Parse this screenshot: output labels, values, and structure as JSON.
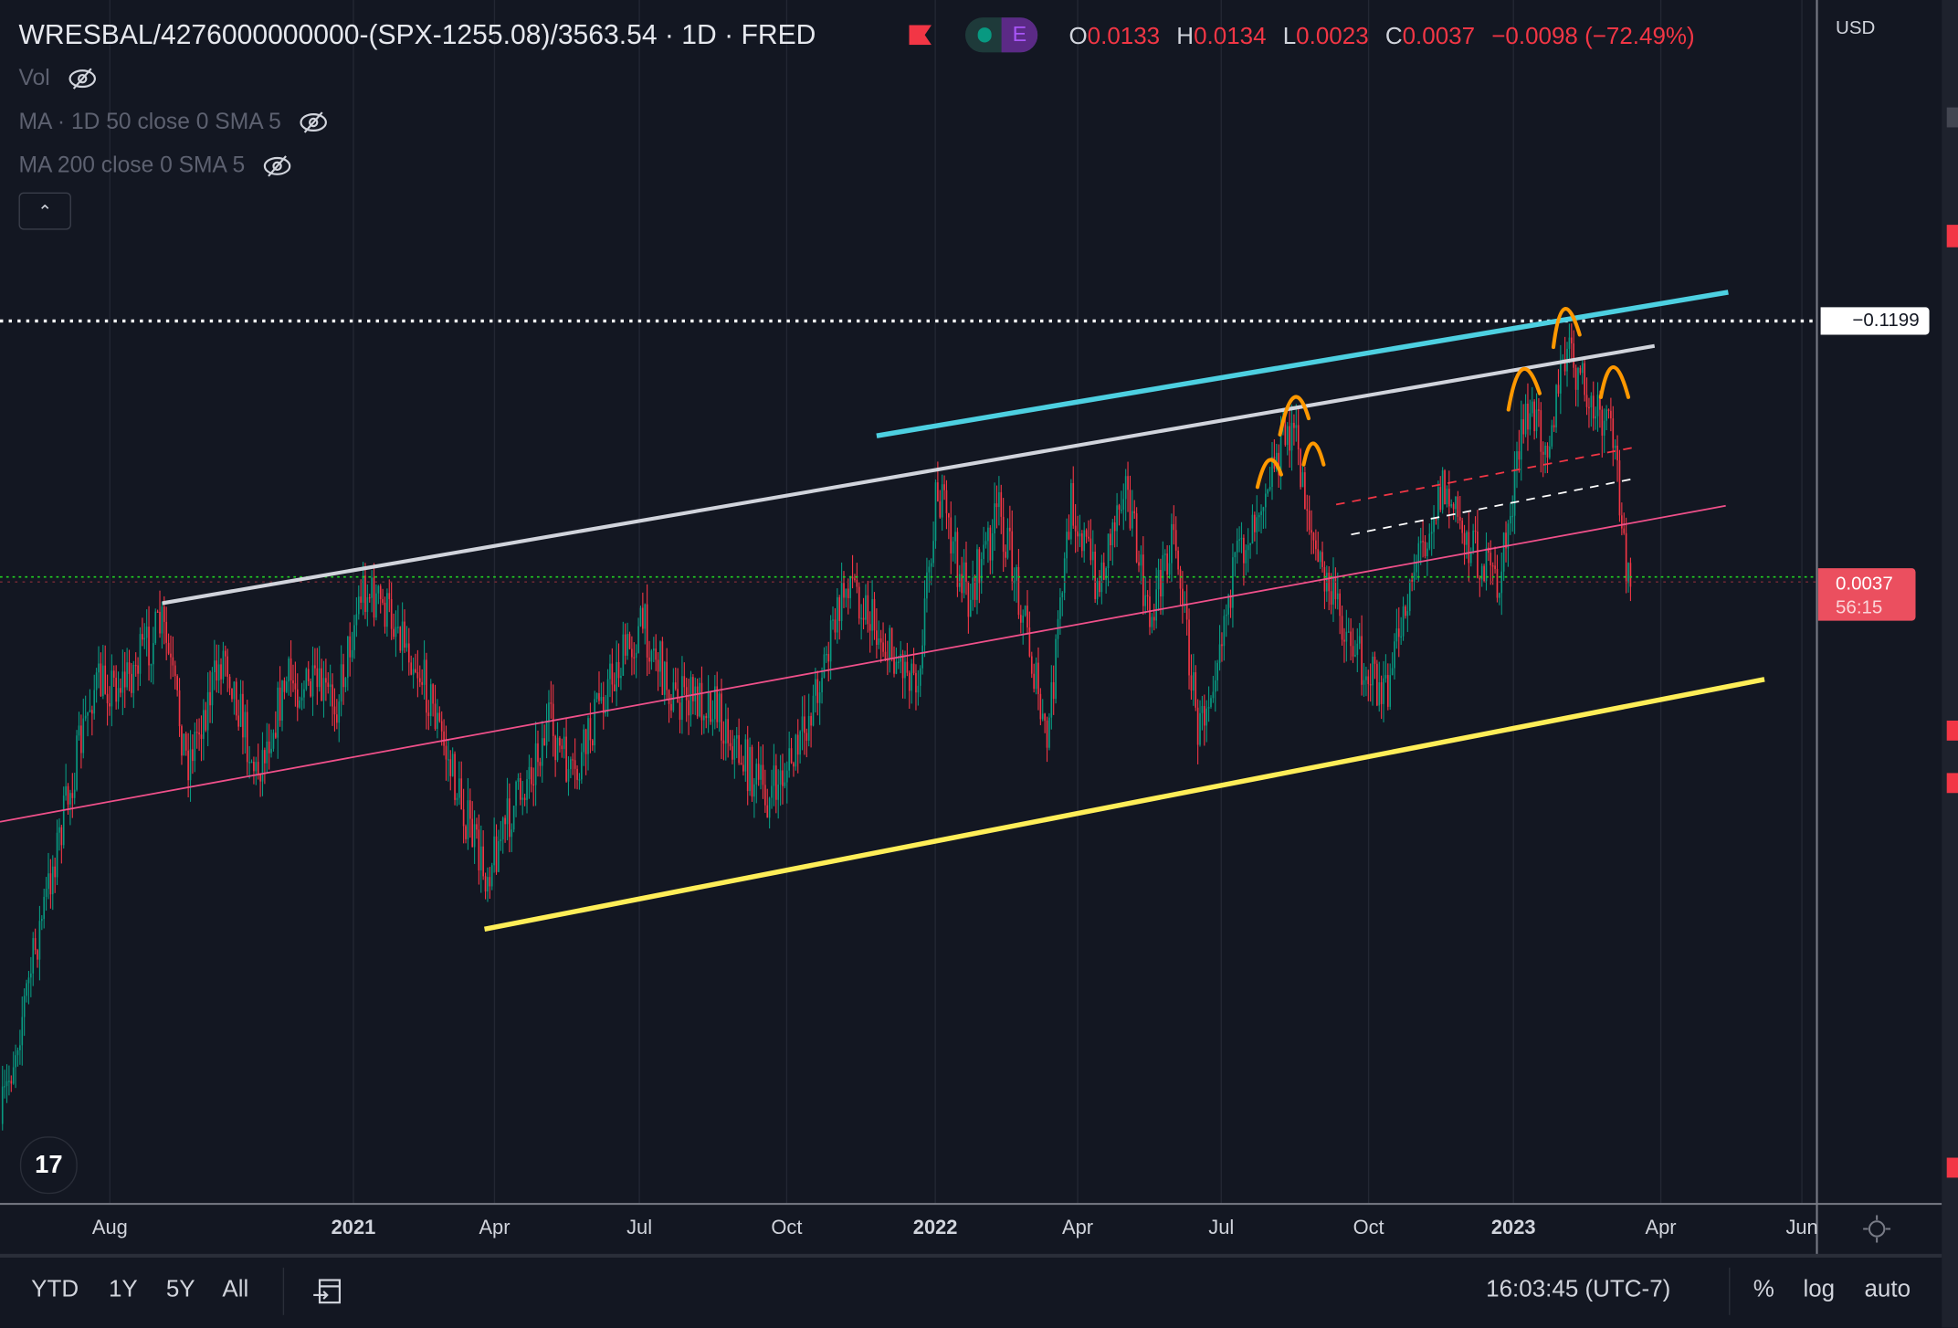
{
  "header": {
    "symbol_title": "WRESBAL/4276000000000-(SPX-1255.08)/3563.54 · 1D · FRED",
    "earnings_badge": "E",
    "ohlc": {
      "o_label": "O",
      "o": "0.0133",
      "h_label": "H",
      "h": "0.0134",
      "l_label": "L",
      "l": "0.0023",
      "c_label": "C",
      "c": "0.0037",
      "change": "−0.0098 (−72.49%)"
    }
  },
  "indicators": [
    {
      "label": "Vol",
      "icon": "eye-off-icon"
    },
    {
      "label": "MA · 1D 50 close 0 SMA 5",
      "icon": "eye-off-icon"
    },
    {
      "label": "MA 200 close 0 SMA 5",
      "icon": "eye-off-icon"
    }
  ],
  "price_axis": {
    "currency": "USD",
    "level_label": "−0.1199",
    "last_price": "0.0037",
    "countdown": "56:15"
  },
  "time_axis": {
    "ticks": [
      {
        "label": "Aug",
        "bold": false
      },
      {
        "label": "2021",
        "bold": true
      },
      {
        "label": "Apr",
        "bold": false
      },
      {
        "label": "Jul",
        "bold": false
      },
      {
        "label": "Oct",
        "bold": false
      },
      {
        "label": "2022",
        "bold": true
      },
      {
        "label": "Apr",
        "bold": false
      },
      {
        "label": "Jul",
        "bold": false
      },
      {
        "label": "Oct",
        "bold": false
      },
      {
        "label": "2023",
        "bold": true
      },
      {
        "label": "Apr",
        "bold": false
      },
      {
        "label": "Jun",
        "bold": false
      }
    ]
  },
  "bottom_bar": {
    "ranges": [
      "YTD",
      "1Y",
      "5Y",
      "All"
    ],
    "clock": "16:03:45 (UTC-7)",
    "percent": "%",
    "log": "log",
    "auto": "auto"
  },
  "colors": {
    "background": "#131722",
    "up": "#089981",
    "down": "#f23645",
    "cyan_trend": "#4dd0e1",
    "grey_trend": "#d1d4dc",
    "pink_trend": "#f0508a",
    "yellow_trend": "#ffee58",
    "arcs": "#ff9800",
    "last_price": "#eb4f5f"
  }
}
